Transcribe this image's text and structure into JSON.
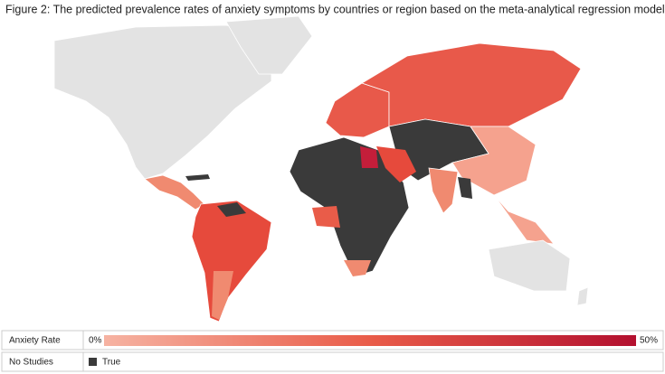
{
  "title": "Figure 2: The predicted prevalence rates of anxiety symptoms by countries or region based on the meta-analytical regression model",
  "legend": {
    "rate": {
      "label": "Anxiety Rate",
      "min": "0%",
      "max": "50%"
    },
    "no_studies": {
      "label": "No Studies",
      "value": "True"
    }
  }
}
